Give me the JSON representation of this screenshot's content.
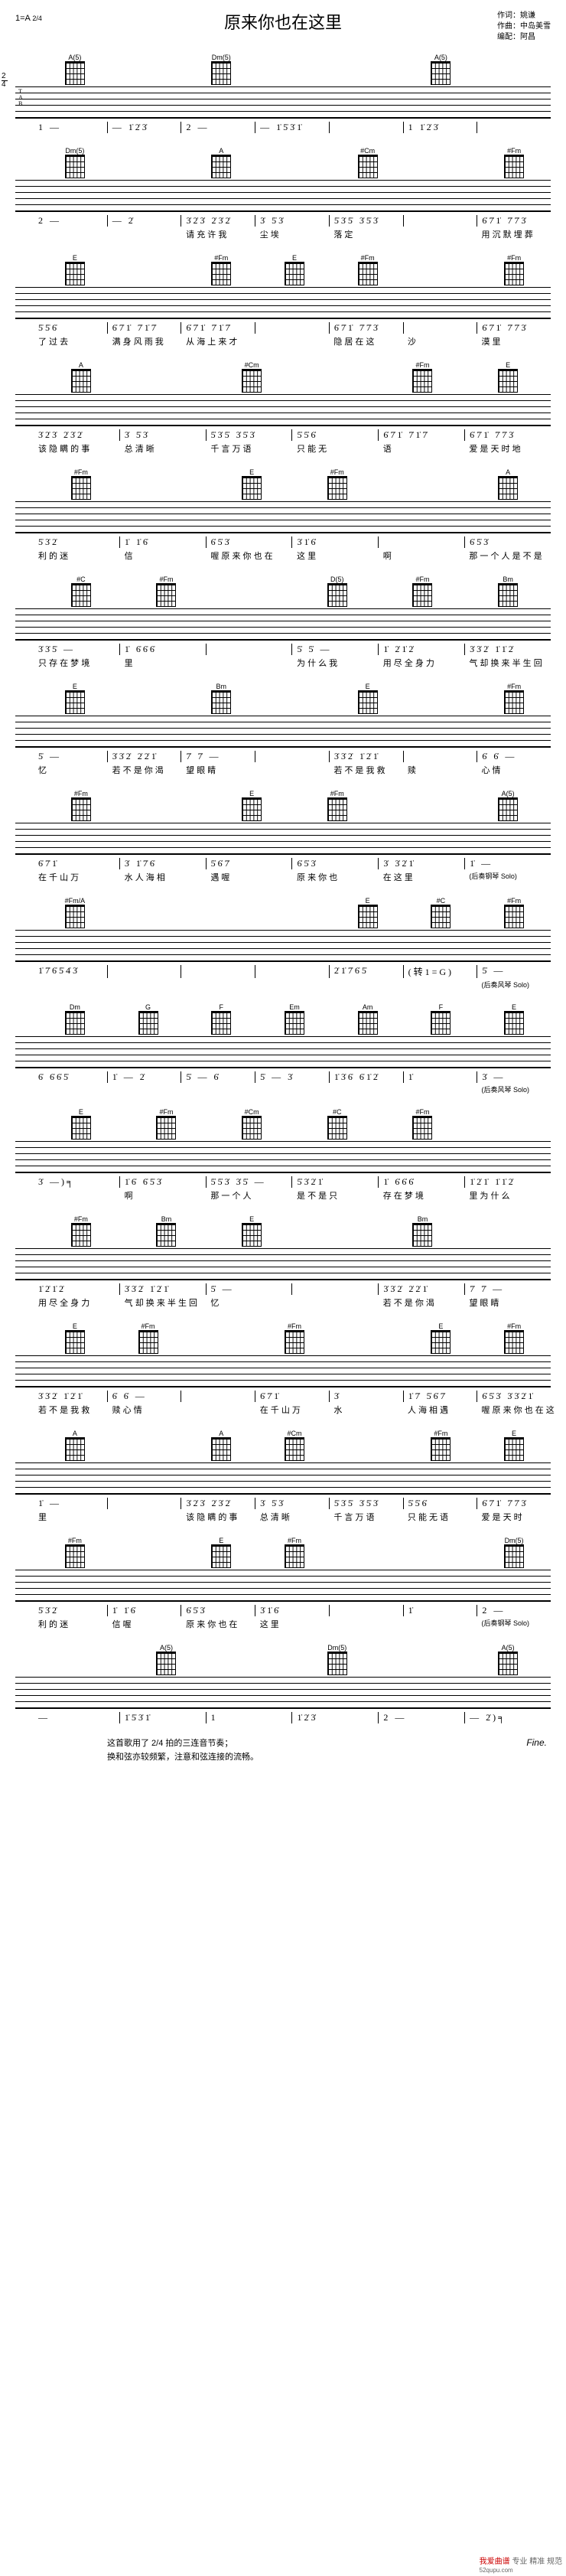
{
  "header": {
    "key": "1=A",
    "meter_top": "2",
    "meter_bottom": "4",
    "title": "原来你也在这里",
    "lyricist_label": "作词：",
    "lyricist": "姚谦",
    "composer_label": "作曲：",
    "composer": "中岛美雪",
    "arranger_label": "编配：",
    "arranger": "阿昌"
  },
  "chords": {
    "A5": "A(5)",
    "Dm5": "Dm(5)",
    "A": "A",
    "Cm": "#Cm",
    "Fm": "#Fm",
    "E": "E",
    "C": "#C",
    "D5": "D(5)",
    "Bm": "Bm",
    "FmA": "#Fm/A",
    "Dm": "Dm",
    "G": "G",
    "F": "F",
    "Em": "Em",
    "Am": "Am"
  },
  "lines": [
    {
      "chords": [
        "A5",
        "",
        "Dm5",
        "",
        "",
        "A5",
        ""
      ],
      "jianpu": [
        "1 —",
        "—  1̇2̇3̇",
        "2 —",
        "—  1̇5̇3̇1̇",
        "",
        "1  1̇2̇3̇",
        ""
      ],
      "lyrics": [
        "",
        "",
        "",
        "",
        "",
        "",
        ""
      ]
    },
    {
      "chords": [
        "Dm5",
        "",
        "A",
        "",
        "Cm",
        "",
        "Fm"
      ],
      "jianpu": [
        "2 —",
        "—  2̇",
        "3̇2̇3̇ 2̇3̇2̇",
        "3̇ 5̇3̇",
        "5̇3̇5̇ 3̇5̇3̇",
        "",
        "6̇7̇1̇ 7̇7̇3̇"
      ],
      "lyrics": [
        "",
        "",
        "请 充 许 我",
        "尘 埃",
        "落   定",
        "",
        "用 沉 默 埋  葬"
      ]
    },
    {
      "chords": [
        "E",
        "",
        "Fm",
        "E",
        "Fm",
        "",
        "Fm"
      ],
      "jianpu": [
        "5̇5̇6̇",
        "6̇7̇1̇ 7̇1̇7̇",
        "6̇7̇1̇ 7̇1̇7̇",
        "",
        "6̇7̇1̇ 7̇7̇3̇",
        "",
        "6̇7̇1̇ 7̇7̇3̇"
      ],
      "lyrics": [
        "了 过 去",
        "满 身 风 雨  我",
        "从 海 上 来  才",
        "",
        "隐  居 在 这",
        "沙",
        "漠      里"
      ]
    },
    {
      "chords": [
        "A",
        "",
        "Cm",
        "",
        "Fm",
        "E"
      ],
      "jianpu": [
        "3̇2̇3̇ 2̇3̇2̇",
        "3̇ 5̇3̇",
        "5̇3̇5̇ 3̇5̇3̇",
        "5̇5̇6̇",
        "6̇7̇1̇ 7̇1̇7̇",
        "6̇7̇1̇ 7̇7̇3̇"
      ],
      "lyrics": [
        "该 隐 瞒 的  事",
        "总 清   晰",
        "千 言 万 语",
        "只 能 无",
        "语  ",
        "爱 是 天 时   地"
      ]
    },
    {
      "chords": [
        "Fm",
        "",
        "E",
        "Fm",
        "",
        "A"
      ],
      "jianpu": [
        "5̇3̇2̇",
        "1̇ 1̇6̇",
        "6̇5̇3̇",
        "3̇1̇6̇",
        "",
        "6̇5̇3̇"
      ],
      "lyrics": [
        "利 的 迷",
        "信  ",
        "喔   原 来 你 也 在",
        "这 里",
        "啊",
        "那 一 个 人  是 不 是"
      ]
    },
    {
      "chords": [
        "C",
        "Fm",
        "",
        "D5",
        "Fm",
        "Bm"
      ],
      "jianpu": [
        "3̇3̇5̇ —",
        "1̇ 6̇6̇6̇",
        "",
        "5̇  5̇ —",
        "1̇  2̇1̇2̇",
        "3̇3̇2̇ 1̇1̇2̇"
      ],
      "lyrics": [
        "只  存 在 梦 境",
        "里",
        "",
        "为 什 么 我",
        "用 尽 全 身 力",
        "气  却 换 来 半 生 回"
      ]
    },
    {
      "chords": [
        "E",
        "",
        "Bm",
        "",
        "E",
        "",
        "Fm"
      ],
      "jianpu": [
        "5̇ —",
        "3̇3̇2̇ 2̇2̇1̇",
        "7̇ 7̇ —",
        "",
        "3̇3̇2̇ 1̇2̇1̇",
        "",
        "6̇ 6̇ —"
      ],
      "lyrics": [
        "忆",
        "若 不 是 你  渴",
        "望  眼  睛",
        "",
        "若 不 是 我  救",
        "赎",
        "心      情"
      ]
    },
    {
      "chords": [
        "Fm",
        "",
        "E",
        "Fm",
        "",
        "A5"
      ],
      "jianpu": [
        "6̇7̇1̇",
        "3̇ 1̇7̇6̇",
        "5̇6̇7̇",
        "6̇5̇3̇",
        "3̇ 3̇2̇1̇",
        "1̇ —"
      ],
      "lyrics": [
        "在 千 山 万",
        "水  人 海 相",
        "遇    喔",
        "原 来 你 也",
        "在    这    里",
        "(后奏钢琴 Solo)"
      ]
    },
    {
      "chords": [
        "FmA",
        "",
        "",
        "",
        "E",
        "C",
        "Fm"
      ],
      "jianpu": [
        "1̇7̇6̇5̇4̇3̇",
        "",
        "",
        "",
        "2̇1̇7̇6̇5̇",
        "(转1=G)",
        "5̇ —"
      ],
      "lyrics": [
        "",
        "",
        "",
        "",
        "",
        "",
        "(后奏风琴 Solo)"
      ]
    },
    {
      "chords": [
        "Dm",
        "G",
        "F",
        "Em",
        "Am",
        "F",
        "E"
      ],
      "jianpu": [
        "6̇ 6̇6̇5̇",
        "1̇ — 2̇",
        "5̇ — 6̇",
        "5̇ — 3̇",
        "1̇3̇6̇ 6̇1̇2̇",
        "1̇",
        "3̇ —"
      ],
      "lyrics": [
        "",
        "",
        "",
        "",
        "",
        "",
        "(后奏风琴 Solo)"
      ]
    },
    {
      "chords": [
        "E",
        "Fm",
        "Cm",
        "C",
        "Fm",
        ""
      ],
      "jianpu": [
        "3̇ —)╕",
        "1̇6̇ 6̇5̇3̇",
        "5̇5̇3̇  3̇5̇ —",
        "5̇3̇2̇1̇",
        "1̇ 6̇6̇6̇",
        "1̇2̇1̇ 1̇1̇2̇"
      ],
      "lyrics": [
        "",
        "啊",
        "那 一 个 人",
        "是 不 是  只",
        "存 在 梦 境",
        "里    为 什 么"
      ]
    },
    {
      "chords": [
        "Fm",
        "Bm",
        "E",
        "",
        "Bm",
        ""
      ],
      "jianpu": [
        "1̇2̇1̇2̇",
        "3̇3̇2̇ 1̇2̇1̇",
        "5̇ —",
        "",
        "3̇3̇2̇ 2̇2̇1̇",
        "7̇ 7̇ —"
      ],
      "lyrics": [
        "用 尽 全 身 力",
        "气  却 换 来 半 生 回",
        "忆",
        "",
        "若 不 是 你  渴",
        "望  眼  睛"
      ]
    },
    {
      "chords": [
        "E",
        "Fm",
        "",
        "Fm",
        "",
        "E",
        "Fm"
      ],
      "jianpu": [
        "3̇3̇2̇ 1̇2̇1̇",
        "6̇ 6̇ —",
        "",
        "6̇7̇1̇",
        "3̇",
        "1̇7̇ 5̇6̇7̇",
        "6̇5̇3̇  3̇3̇2̇1̇"
      ],
      "lyrics": [
        "若 不 是 我  救",
        "赎  心    情",
        "",
        "在 千 山 万",
        "水",
        "人 海 相 遇",
        "喔  原 来 你 也 在 这"
      ]
    },
    {
      "chords": [
        "A",
        "",
        "A",
        "Cm",
        "",
        "Fm",
        "E"
      ],
      "jianpu": [
        "1̇ —",
        "",
        "3̇2̇3̇ 2̇3̇2̇",
        "3̇ 5̇3̇",
        "5̇3̇5̇ 3̇5̇3̇",
        "5̇5̇6̇",
        "6̇7̇1̇ 7̇7̇3̇"
      ],
      "lyrics": [
        "里",
        "",
        "该 隐 瞒 的 事",
        "总 清  晰",
        "千 言 万 语",
        "只 能 无 语",
        "爱 是 天 时"
      ]
    },
    {
      "chords": [
        "Fm",
        "",
        "E",
        "Fm",
        "",
        "",
        "Dm5"
      ],
      "jianpu": [
        "5̇3̇2̇",
        "1̇ 1̇6̇",
        "6̇5̇3̇",
        "3̇1̇6̇",
        "",
        "1̇",
        "2 —"
      ],
      "lyrics": [
        "利 的 迷",
        "信   喔",
        "原 来 你 也 在",
        "这 里",
        "",
        "",
        "(后奏钢琴 Solo)"
      ]
    },
    {
      "chords": [
        "",
        "A5",
        "",
        "Dm5",
        "",
        "A5"
      ],
      "jianpu": [
        "—",
        "1̇5̇3̇1̇",
        "1",
        "1̇2̇3̇",
        "2 —",
        "— 2̇)╕"
      ],
      "lyrics": [
        "",
        "",
        "",
        "",
        "",
        ""
      ]
    }
  ],
  "footer": {
    "note1": "这首歌用了 2/4 拍的三连音节奏；",
    "note2": "换和弦亦较频繁，注意和弦连接的流畅。",
    "fine": "Fine."
  },
  "watermark": {
    "site": "我爱曲谱",
    "sub": "专业 精准 规范",
    "url": "52qupu.com"
  }
}
